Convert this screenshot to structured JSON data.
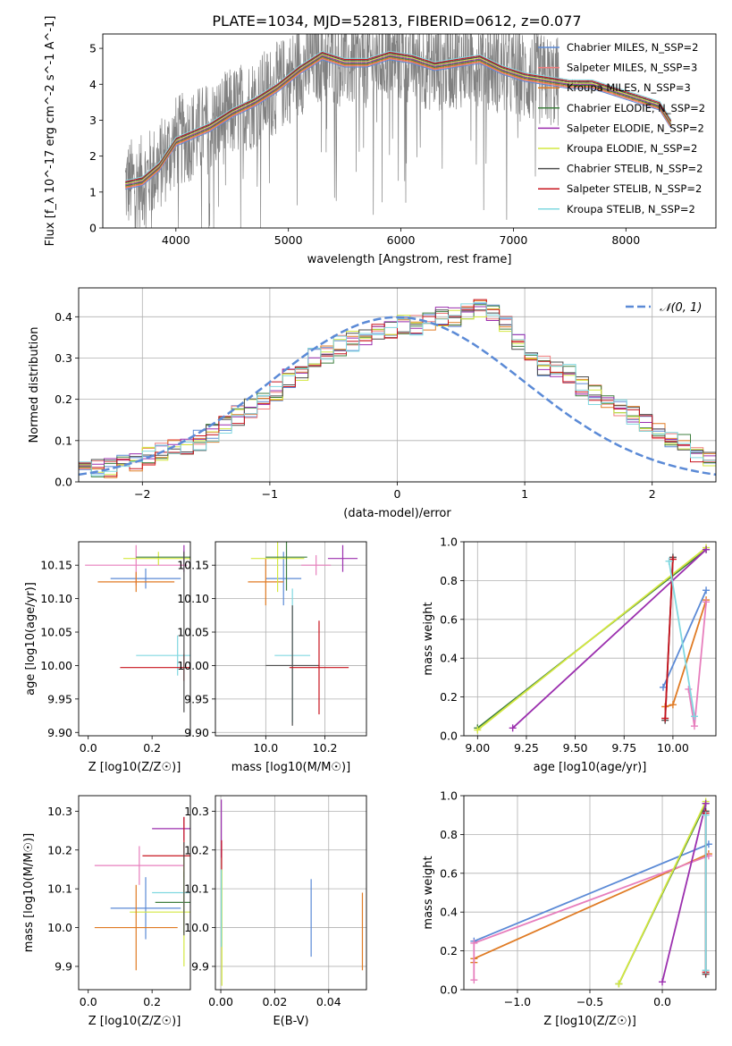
{
  "title": "PLATE=1034, MJD=52813, FIBERID=0612, z=0.077",
  "colors": {
    "chabrier_miles": "#5b8ad6",
    "salpeter_miles": "#f07c7c",
    "kroupa_miles": "#e07b24",
    "chabrier_elodie": "#3f7f3f",
    "salpeter_elodie": "#9b2fae",
    "kroupa_elodie": "#d4e840",
    "chabrier_stelib": "#4d4d4d",
    "salpeter_stelib": "#c8141e",
    "kroupa_stelib": "#80d8e0",
    "data": "#808080",
    "normal": "#5b8ad6",
    "pink": "#e77fbd",
    "yellowgreen": "#a8d52f",
    "cyan": "#6dd0d6"
  },
  "chart_data": [
    {
      "type": "line",
      "id": "spectrum",
      "xlabel": "wavelength [Angstrom, rest frame]",
      "ylabel": "Flux [f_λ 10^-17 erg cm^-2 s^-1 A^-1]",
      "xlim": [
        3350,
        8800
      ],
      "ylim": [
        0,
        5.4
      ],
      "xticks": [
        4000,
        5000,
        6000,
        7000,
        8000
      ],
      "yticks": [
        0,
        1,
        2,
        3,
        4,
        5
      ],
      "legend_position": "right",
      "legend": [
        {
          "label": "Chabrier MILES, N_SSP=2",
          "color_key": "chabrier_miles"
        },
        {
          "label": "Salpeter MILES, N_SSP=3",
          "color_key": "salpeter_miles"
        },
        {
          "label": "Kroupa MILES, N_SSP=3",
          "color_key": "kroupa_miles"
        },
        {
          "label": "Chabrier ELODIE, N_SSP=2",
          "color_key": "chabrier_elodie"
        },
        {
          "label": "Salpeter ELODIE, N_SSP=2",
          "color_key": "salpeter_elodie"
        },
        {
          "label": "Kroupa ELODIE, N_SSP=2",
          "color_key": "kroupa_elodie"
        },
        {
          "label": "Chabrier STELIB, N_SSP=2",
          "color_key": "chabrier_stelib"
        },
        {
          "label": "Salpeter STELIB, N_SSP=2",
          "color_key": "salpeter_stelib"
        },
        {
          "label": "Kroupa STELIB, N_SSP=2",
          "color_key": "kroupa_stelib"
        }
      ],
      "continuum": {
        "x": [
          3550,
          3700,
          3850,
          4000,
          4150,
          4300,
          4500,
          4700,
          4900,
          5100,
          5300,
          5500,
          5700,
          5900,
          6100,
          6300,
          6500,
          6700,
          6900,
          7100,
          7300,
          7500,
          7700,
          7900,
          8100,
          8300,
          8400
        ],
        "y": [
          1.2,
          1.3,
          1.7,
          2.4,
          2.6,
          2.8,
          3.2,
          3.5,
          3.9,
          4.4,
          4.8,
          4.6,
          4.6,
          4.8,
          4.7,
          4.5,
          4.6,
          4.7,
          4.4,
          4.2,
          4.1,
          4.0,
          4.0,
          3.8,
          3.6,
          3.4,
          2.9
        ]
      }
    },
    {
      "type": "line",
      "id": "residuals",
      "xlabel": "(data-model)/error",
      "ylabel": "Normed distribution",
      "xlim": [
        -2.5,
        2.5
      ],
      "ylim": [
        0,
        0.47
      ],
      "xticks": [
        -2,
        -1,
        0,
        1,
        2
      ],
      "yticks": [
        0.0,
        0.1,
        0.2,
        0.3,
        0.4
      ],
      "grid": true,
      "legend_position": "top-right",
      "legend": [
        {
          "label": "𝒩(0, 1)",
          "color_key": "normal"
        }
      ],
      "bin_width": 0.1,
      "bin_start": -2.5,
      "histogram_base": [
        0.025,
        0.03,
        0.035,
        0.04,
        0.05,
        0.06,
        0.07,
        0.08,
        0.09,
        0.1,
        0.12,
        0.14,
        0.16,
        0.18,
        0.2,
        0.22,
        0.25,
        0.27,
        0.3,
        0.31,
        0.33,
        0.34,
        0.35,
        0.36,
        0.37,
        0.38,
        0.38,
        0.39,
        0.4,
        0.4,
        0.41,
        0.42,
        0.41,
        0.38,
        0.34,
        0.3,
        0.28,
        0.27,
        0.26,
        0.23,
        0.21,
        0.2,
        0.18,
        0.16,
        0.14,
        0.12,
        0.1,
        0.09,
        0.07,
        0.05
      ]
    },
    {
      "type": "scatter",
      "id": "age_vs_Z",
      "xlabel": "Z [log10(Z/Z☉)]",
      "ylabel": "age [log10(age/yr)]",
      "xlim": [
        -0.03,
        0.32
      ],
      "ylim": [
        9.895,
        10.185
      ],
      "xticks": [
        0.0,
        0.2
      ],
      "yticks": [
        9.9,
        9.95,
        10.0,
        10.05,
        10.1,
        10.15
      ],
      "errorbars": [
        {
          "color_key": "pink",
          "x": 0.15,
          "y": 10.15,
          "xerr": 0.16,
          "yerr": 0.03
        },
        {
          "color_key": "chabrier_miles",
          "x": 0.18,
          "y": 10.13,
          "xerr": 0.11,
          "yerr": 0.015
        },
        {
          "color_key": "kroupa_miles",
          "x": 0.15,
          "y": 10.125,
          "xerr": 0.12,
          "yerr": 0.015
        },
        {
          "color_key": "kroupa_elodie",
          "x": 0.22,
          "y": 10.16,
          "xerr": 0.11,
          "yerr": 0.01
        },
        {
          "color_key": "chabrier_elodie",
          "x": 0.3,
          "y": 10.162,
          "xerr": 0.15,
          "yerr": 0.01
        },
        {
          "color_key": "kroupa_stelib",
          "x": 0.28,
          "y": 10.015,
          "xerr": 0.13,
          "yerr": 0.03
        },
        {
          "color_key": "salpeter_stelib",
          "x": 0.3,
          "y": 9.997,
          "xerr": 0.2,
          "yerr": 0.02
        },
        {
          "color_key": "salpeter_elodie",
          "x": 0.3,
          "y": 10.16,
          "xerr": 0.0,
          "yerr": 0.02
        },
        {
          "color_key": "chabrier_stelib",
          "x": 0.3,
          "y": 10.05,
          "xerr": 0.0,
          "yerr": 0.12
        }
      ]
    },
    {
      "type": "scatter",
      "id": "age_vs_mass",
      "xlabel": "mass [log10(M/M☉)]",
      "ylabel": "",
      "xlim": [
        9.83,
        10.34
      ],
      "ylim": [
        9.895,
        10.185
      ],
      "xticks": [
        10.0,
        10.2
      ],
      "yticks": [
        9.9,
        9.95,
        10.0,
        10.05,
        10.1,
        10.15
      ],
      "grid": true,
      "errorbars": [
        {
          "color_key": "chabrier_miles",
          "x": 10.06,
          "y": 10.13,
          "xerr": 0.06,
          "yerr": 0.04
        },
        {
          "color_key": "kroupa_miles",
          "x": 10.0,
          "y": 10.125,
          "xerr": 0.06,
          "yerr": 0.035
        },
        {
          "color_key": "pink",
          "x": 10.17,
          "y": 10.15,
          "xerr": 0.05,
          "yerr": 0.015
        },
        {
          "color_key": "kroupa_elodie",
          "x": 10.04,
          "y": 10.16,
          "xerr": 0.09,
          "yerr": 0.05
        },
        {
          "color_key": "chabrier_elodie",
          "x": 10.07,
          "y": 10.162,
          "xerr": 0.07,
          "yerr": 0.05
        },
        {
          "color_key": "salpeter_elodie",
          "x": 10.26,
          "y": 10.16,
          "xerr": 0.05,
          "yerr": 0.02
        },
        {
          "color_key": "kroupa_stelib",
          "x": 10.09,
          "y": 10.015,
          "xerr": 0.06,
          "yerr": 0.1
        },
        {
          "color_key": "chabrier_stelib",
          "x": 10.09,
          "y": 10.0,
          "xerr": 0.09,
          "yerr": 0.09
        },
        {
          "color_key": "salpeter_stelib",
          "x": 10.18,
          "y": 9.997,
          "xerr": 0.1,
          "yerr": 0.07
        }
      ]
    },
    {
      "type": "line",
      "id": "weight_vs_age",
      "xlabel": "age [log10(age/yr)]",
      "ylabel": "mass weight",
      "xlim": [
        8.93,
        10.22
      ],
      "ylim": [
        0,
        1.0
      ],
      "xticks": [
        9.0,
        9.25,
        9.5,
        9.75,
        10.0
      ],
      "yticks": [
        0.0,
        0.2,
        0.4,
        0.6,
        0.8,
        1.0
      ],
      "grid": true,
      "series": [
        {
          "color_key": "chabrier_miles",
          "x": [
            9.95,
            10.17
          ],
          "y": [
            0.25,
            0.75
          ]
        },
        {
          "color_key": "kroupa_miles",
          "x": [
            9.96,
            10.0,
            10.17
          ],
          "y": [
            0.15,
            0.16,
            0.7
          ]
        },
        {
          "color_key": "pink",
          "x": [
            10.08,
            10.11,
            10.17
          ],
          "y": [
            0.24,
            0.05,
            0.69
          ]
        },
        {
          "color_key": "chabrier_elodie",
          "x": [
            9.0,
            10.17
          ],
          "y": [
            0.04,
            0.96
          ]
        },
        {
          "color_key": "kroupa_elodie",
          "x": [
            9.0,
            10.17
          ],
          "y": [
            0.03,
            0.97
          ]
        },
        {
          "color_key": "salpeter_elodie",
          "x": [
            9.18,
            10.17
          ],
          "y": [
            0.04,
            0.96
          ]
        },
        {
          "color_key": "chabrier_stelib",
          "x": [
            9.96,
            10.0
          ],
          "y": [
            0.08,
            0.92
          ]
        },
        {
          "color_key": "salpeter_stelib",
          "x": [
            9.96,
            10.0
          ],
          "y": [
            0.09,
            0.91
          ]
        },
        {
          "color_key": "kroupa_stelib",
          "x": [
            9.98,
            10.11
          ],
          "y": [
            0.9,
            0.1
          ]
        }
      ]
    },
    {
      "type": "scatter",
      "id": "mass_vs_Z",
      "xlabel": "Z [log10(Z/Z☉)]",
      "ylabel": "mass [log10(M/M☉)]",
      "xlim": [
        -0.03,
        0.32
      ],
      "ylim": [
        9.84,
        10.34
      ],
      "xticks": [
        0.0,
        0.2
      ],
      "yticks": [
        9.9,
        10.0,
        10.1,
        10.2,
        10.3
      ],
      "errorbars": [
        {
          "color_key": "salpeter_elodie",
          "x": 0.3,
          "y": 10.255,
          "xerr": 0.1,
          "yerr": 0.03
        },
        {
          "color_key": "salpeter_stelib",
          "x": 0.3,
          "y": 10.185,
          "xerr": 0.13,
          "yerr": 0.1
        },
        {
          "color_key": "pink",
          "x": 0.16,
          "y": 10.16,
          "xerr": 0.14,
          "yerr": 0.05
        },
        {
          "color_key": "chabrier_elodie",
          "x": 0.3,
          "y": 10.065,
          "xerr": 0.09,
          "yerr": 0.08
        },
        {
          "color_key": "kroupa_stelib",
          "x": 0.3,
          "y": 10.09,
          "xerr": 0.1,
          "yerr": 0.04
        },
        {
          "color_key": "chabrier_miles",
          "x": 0.18,
          "y": 10.05,
          "xerr": 0.11,
          "yerr": 0.08
        },
        {
          "color_key": "kroupa_elodie",
          "x": 0.3,
          "y": 10.04,
          "xerr": 0.17,
          "yerr": 0.14
        },
        {
          "color_key": "kroupa_miles",
          "x": 0.15,
          "y": 10.0,
          "xerr": 0.13,
          "yerr": 0.11
        },
        {
          "color_key": "chabrier_stelib",
          "x": 0.3,
          "y": 10.1,
          "xerr": 0.0,
          "yerr": 0.12
        }
      ]
    },
    {
      "type": "scatter",
      "id": "mass_vs_EBV",
      "xlabel": "E(B-V)",
      "ylabel": "",
      "xlim": [
        -0.002,
        0.054
      ],
      "ylim": [
        9.84,
        10.34
      ],
      "xticks": [
        0.0,
        0.02,
        0.04
      ],
      "yticks": [
        9.9,
        10.0,
        10.1,
        10.2,
        10.3
      ],
      "grid": true,
      "errorbars": [
        {
          "color_key": "salpeter_elodie",
          "x": 0.0002,
          "y": 10.255,
          "xerr": 0,
          "yerr": 0.075
        },
        {
          "color_key": "salpeter_stelib",
          "x": 0.0003,
          "y": 10.185,
          "xerr": 0,
          "yerr": 0.04
        },
        {
          "color_key": "kroupa_elodie",
          "x": 0.0004,
          "y": 10.0,
          "xerr": 0,
          "yerr": 0.15
        },
        {
          "color_key": "kroupa_stelib",
          "x": 0.0002,
          "y": 10.05,
          "xerr": 0,
          "yerr": 0.1
        },
        {
          "color_key": "chabrier_miles",
          "x": 0.0335,
          "y": 10.025,
          "xerr": 0,
          "yerr": 0.1
        },
        {
          "color_key": "kroupa_miles",
          "x": 0.0525,
          "y": 9.99,
          "xerr": 0,
          "yerr": 0.1
        }
      ]
    },
    {
      "type": "line",
      "id": "weight_vs_Z",
      "xlabel": "Z [log10(Z/Z☉)]",
      "ylabel": "mass weight",
      "xlim": [
        -1.37,
        0.37
      ],
      "ylim": [
        0,
        1.0
      ],
      "xticks": [
        -1.0,
        -0.5,
        0.0
      ],
      "yticks": [
        0.0,
        0.2,
        0.4,
        0.6,
        0.8,
        1.0
      ],
      "grid": true,
      "series": [
        {
          "color_key": "chabrier_miles",
          "x": [
            -1.3,
            0.32
          ],
          "y": [
            0.25,
            0.75
          ]
        },
        {
          "color_key": "kroupa_miles",
          "x": [
            -1.3,
            -1.3,
            0.32
          ],
          "y": [
            0.14,
            0.16,
            0.7
          ]
        },
        {
          "color_key": "pink",
          "x": [
            -1.3,
            -1.3,
            0.32
          ],
          "y": [
            0.05,
            0.24,
            0.69
          ]
        },
        {
          "color_key": "chabrier_elodie",
          "x": [
            -0.3,
            0.3
          ],
          "y": [
            0.03,
            0.96
          ]
        },
        {
          "color_key": "kroupa_elodie",
          "x": [
            -0.3,
            0.3
          ],
          "y": [
            0.03,
            0.97
          ]
        },
        {
          "color_key": "salpeter_elodie",
          "x": [
            0.0,
            0.3
          ],
          "y": [
            0.04,
            0.96
          ]
        },
        {
          "color_key": "chabrier_stelib",
          "x": [
            0.3,
            0.3
          ],
          "y": [
            0.08,
            0.92
          ]
        },
        {
          "color_key": "salpeter_stelib",
          "x": [
            0.3,
            0.3
          ],
          "y": [
            0.09,
            0.91
          ]
        },
        {
          "color_key": "kroupa_stelib",
          "x": [
            0.3,
            0.3
          ],
          "y": [
            0.1,
            0.9
          ]
        }
      ]
    }
  ]
}
